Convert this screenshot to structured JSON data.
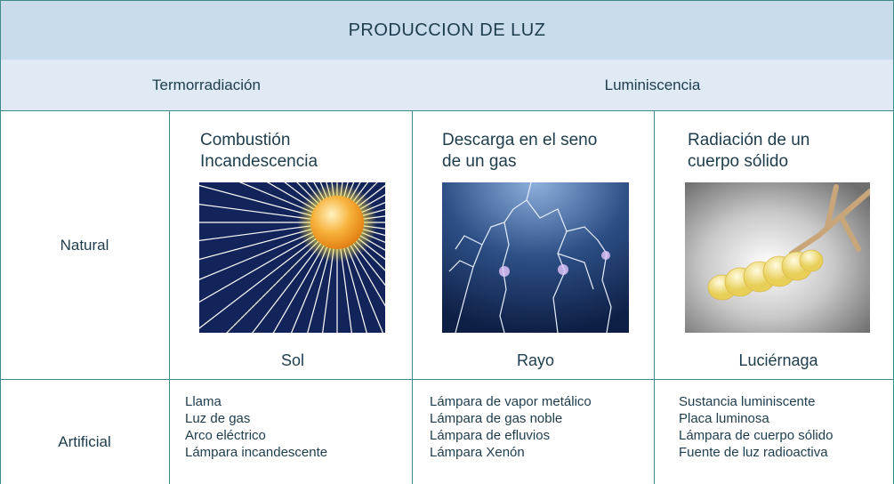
{
  "title": "PRODUCCION DE LUZ",
  "headers": [
    "Termorradiación",
    "Luminiscencia"
  ],
  "natural": {
    "label": "Natural",
    "cells": [
      {
        "heading": [
          "Combustión",
          "Incandescencia"
        ],
        "caption": "Sol"
      },
      {
        "heading": [
          "Descarga en el seno",
          "de un gas"
        ],
        "caption": "Rayo"
      },
      {
        "heading": [
          "Radiación de un",
          "cuerpo sólido"
        ],
        "caption": "Luciérnaga"
      }
    ]
  },
  "artificial": {
    "label": "Artificial",
    "cells": [
      [
        "Llama",
        "Luz de gas",
        "Arco eléctrico",
        "Lámpara incandescente"
      ],
      [
        "Lámpara de vapor metálico",
        "Lámpara de gas noble",
        "Lámpara de efluvios",
        "Lámpara Xenón"
      ],
      [
        "Sustancia luminiscente",
        "Placa luminosa",
        "Lámpara de cuerpo sólido",
        "Fuente de luz radioactiva"
      ]
    ]
  }
}
